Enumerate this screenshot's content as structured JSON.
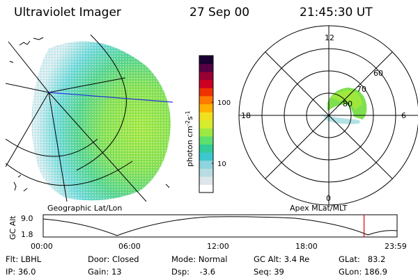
{
  "header": {
    "instrument": "Ultraviolet Imager",
    "date": "27 Sep 00",
    "time": "21:45:30 UT"
  },
  "geo_panel": {
    "label": "Geographic Lat/Lon"
  },
  "colorbar": {
    "label": "photon cm",
    "exp1": "-2",
    "mid": "s",
    "exp2": "-1",
    "tick_labels": [
      "100",
      "10"
    ],
    "colors": [
      "#ffffff",
      "#dde6e9",
      "#b8dde0",
      "#8ed4dc",
      "#3dc8d0",
      "#33cc99",
      "#5ee06e",
      "#9ee844",
      "#d6ec2e",
      "#f0e020",
      "#ffb000",
      "#ff7a00",
      "#ee3300",
      "#cc0022",
      "#990033",
      "#550044",
      "#1a0033"
    ]
  },
  "polar_panel": {
    "label": "Apex MLat/MLT",
    "mlt_labels": {
      "top": "12",
      "left": "18",
      "right": "6",
      "bottom": "0"
    },
    "lat_labels": [
      "60",
      "70",
      "80"
    ]
  },
  "gc_alt_plot": {
    "ylabel": "GC Alt",
    "y_ticks": [
      "9.0",
      "1.8"
    ],
    "x_ticks": [
      "00:00",
      "06:00",
      "12:00",
      "18:00",
      "23:59"
    ],
    "current_time_fraction": 0.9066,
    "cursor_color": "#dd0000"
  },
  "info": {
    "filter": "Flt: LBHL",
    "ip": "IP: 36.0",
    "door": "Door: Closed",
    "gain": "Gain: 13",
    "mode": "Mode: Normal",
    "dsp": "Dsp:    -3.6",
    "gc_alt": "GC Alt: 3.4 Re",
    "seq": "Seq: 39",
    "glat": "GLat:   83.2",
    "glon": "GLon: 186.9"
  }
}
